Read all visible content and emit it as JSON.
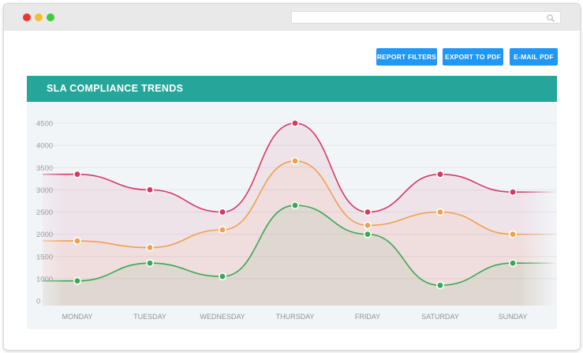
{
  "window": {
    "search_icon": "search-icon",
    "traffic_lights": [
      "#f0352f",
      "#f5bf2a",
      "#3dcc3a"
    ]
  },
  "toolbar": {
    "report_filters_label": "REPORT FILTERS",
    "export_pdf_label": "EXPORT TO PDF",
    "email_pdf_label": "E-MAIL PDF",
    "button_color": "#2196f3"
  },
  "panel": {
    "title": "SLA COMPLIANCE TRENDS",
    "header_color": "#26a69a"
  },
  "chart_data": {
    "type": "area",
    "title": "SLA COMPLIANCE TRENDS",
    "xlabel": "",
    "ylabel": "",
    "categories": [
      "MONDAY",
      "TUESDAY",
      "WEDNESDAY",
      "THURSDAY",
      "FRIDAY",
      "SATURDAY",
      "SUNDAY"
    ],
    "y_ticks": [
      0,
      1000,
      1500,
      2000,
      2500,
      3000,
      3500,
      4000,
      4500
    ],
    "ylim": [
      0,
      4800
    ],
    "grid": true,
    "legend": "none",
    "series": [
      {
        "color": "#d63865",
        "values": [
          3350,
          3000,
          2500,
          4500,
          2500,
          3350,
          2950
        ]
      },
      {
        "color": "#f0a04b",
        "values": [
          1850,
          1700,
          2100,
          3650,
          2200,
          2500,
          2000
        ]
      },
      {
        "color": "#3aa756",
        "values": [
          950,
          1350,
          1050,
          2650,
          2000,
          850,
          1350
        ]
      }
    ]
  }
}
